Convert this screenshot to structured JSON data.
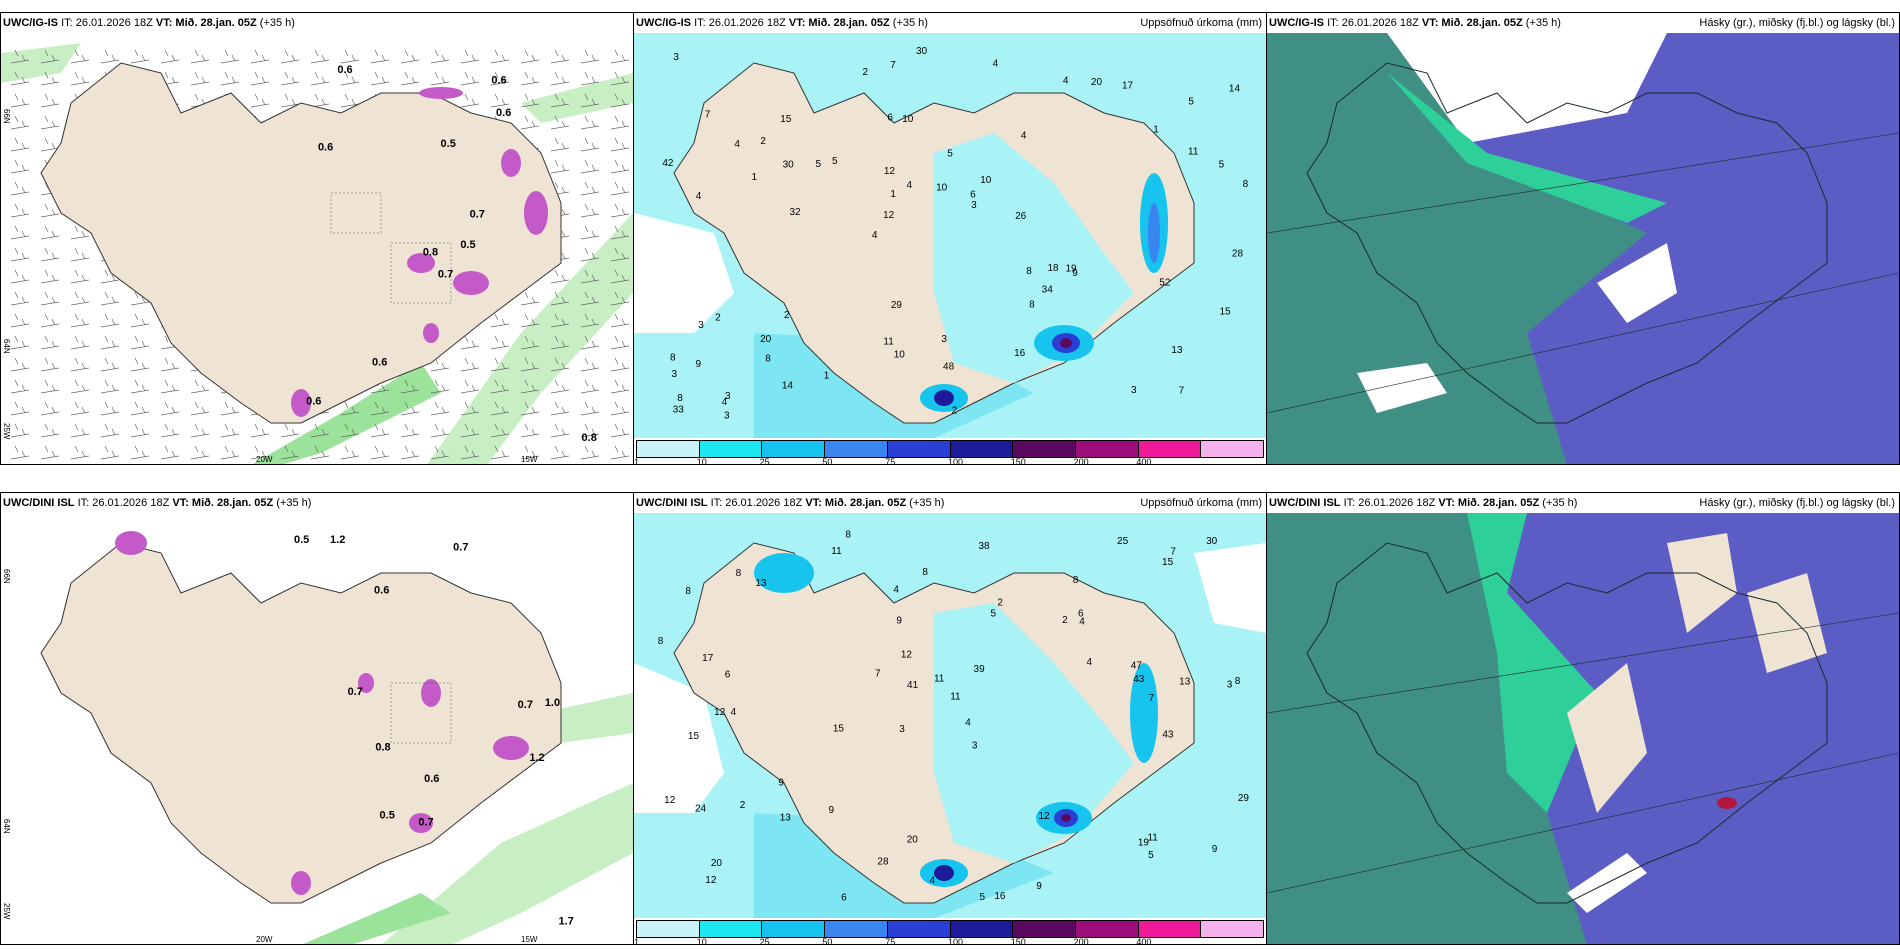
{
  "rows": [
    {
      "model": "UWC/IG-IS",
      "it": "IT: 26.01.2026 18Z",
      "vt_label": "VT:",
      "vt_value": "Mið. 28.jan. 05Z",
      "lead": "(+35 h)",
      "precip_labels": [
        "7",
        "4",
        "5",
        "4",
        "4",
        "3",
        "6",
        "5",
        "2",
        "5",
        "3",
        "8",
        "10",
        "10",
        "9",
        "7",
        "7",
        "8",
        "8",
        "11",
        "12",
        "11",
        "1",
        "15",
        "4",
        "2",
        "3",
        "13",
        "19",
        "2",
        "5",
        "1",
        "8",
        "14",
        "5",
        "6",
        "8",
        "10",
        "3",
        "3",
        "1",
        "14",
        "34",
        "16",
        "20",
        "3",
        "33",
        "3",
        "17",
        "30",
        "32",
        "42",
        "2",
        "20",
        "4",
        "4",
        "2",
        "4",
        "15",
        "29",
        "1",
        "18",
        "30",
        "8",
        "3",
        "4",
        "28",
        "12",
        "48",
        "10",
        "9",
        "26",
        "52"
      ],
      "wind_labels": [
        "0.7",
        "0.6",
        "0.8",
        "0.6",
        "0.7",
        "0.6",
        "0.6",
        "0.5",
        "0.6",
        "0.5",
        "0.6",
        "0.8"
      ]
    },
    {
      "model": "UWC/DINI ISL",
      "it": "IT: 26.01.2026 18Z",
      "vt_label": "VT:",
      "vt_value": "Mið. 28.jan. 05Z",
      "lead": "(+35 h)",
      "precip_labels": [
        "8",
        "8",
        "3",
        "3",
        "3",
        "4",
        "8",
        "2",
        "15",
        "5",
        "11",
        "12",
        "11",
        "15",
        "5",
        "16",
        "20",
        "25",
        "4",
        "9",
        "6",
        "12",
        "8",
        "13",
        "12",
        "17",
        "41",
        "43",
        "11",
        "24",
        "19",
        "2",
        "2",
        "7",
        "12",
        "29",
        "47",
        "28",
        "30",
        "8",
        "20",
        "6",
        "9",
        "8",
        "4",
        "4",
        "5",
        "6",
        "8",
        "4",
        "4",
        "7",
        "39",
        "15",
        "38",
        "13",
        "12",
        "11",
        "7",
        "9",
        "9",
        "43",
        "13",
        "9"
      ],
      "wind_labels": [
        "0.6",
        "0.7",
        "1.2",
        "1.2",
        "1.7",
        "0.6",
        "0.7",
        "0.8",
        "0.5",
        "0.7",
        "1.0",
        "0.7",
        "0.5"
      ]
    }
  ],
  "precip_panel_title": "Uppsöfnuð úrkoma (mm)",
  "cloud_panel_title": "Hásky (gr.), miðsky (fj.bl.) og lágsky (bl.)",
  "colorbar": {
    "ticks": [
      "1",
      "10",
      "25",
      "50",
      "75",
      "100",
      "150",
      "200",
      "400"
    ],
    "colors": [
      "#c9f4f7",
      "#1ce6f0",
      "#16c4ee",
      "#3a86f0",
      "#2a3fd6",
      "#1d1b9a",
      "#5a0a5e",
      "#9a0d7a",
      "#ee1a9a",
      "#f5b2ee"
    ]
  },
  "axis_labels": {
    "lat66": "66N",
    "lat64": "64N",
    "lat25": "25W",
    "lon20": "20W",
    "lon15": "15W"
  },
  "colors": {
    "land": "#efe3d4",
    "sea_precip": "#a9f3f7",
    "cloud_dark": "#3f8f85",
    "cloud_purple": "#5b5cc4",
    "cloud_green": "#2fcf99",
    "wind_green": "#9be39a"
  }
}
